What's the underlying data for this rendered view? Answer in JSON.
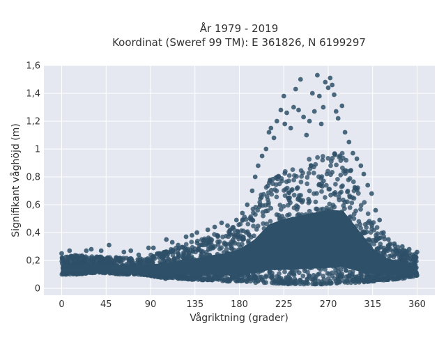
{
  "chart_data": {
    "type": "scatter",
    "title_line1": "År 1979 - 2019",
    "title_line2": "Koordinat (Sweref 99 TM): E 361826, N 6199297",
    "xlabel": "Vågriktning (grader)",
    "ylabel": "Signifikant våghöjd (m)",
    "xlim": [
      -18,
      378
    ],
    "ylim": [
      -0.05,
      1.6
    ],
    "xticks": [
      0,
      45,
      90,
      135,
      180,
      225,
      270,
      315,
      360
    ],
    "xtick_labels": [
      "0",
      "45",
      "90",
      "135",
      "180",
      "225",
      "270",
      "315",
      "360"
    ],
    "yticks": [
      0,
      0.2,
      0.4,
      0.6,
      0.8,
      1.0,
      1.2,
      1.4,
      1.6
    ],
    "ytick_labels": [
      "0",
      "0,2",
      "0,4",
      "0,6",
      "0,8",
      "1",
      "1,2",
      "1,4",
      "1,6"
    ],
    "grid": true,
    "marker_color": "#2e5068",
    "background_color": "#e5e8f0",
    "envelope": {
      "x": [
        0,
        15,
        30,
        45,
        60,
        75,
        90,
        105,
        120,
        135,
        150,
        165,
        180,
        195,
        210,
        225,
        240,
        255,
        270,
        285,
        300,
        315,
        330,
        345,
        360
      ],
      "upper": [
        0.23,
        0.24,
        0.23,
        0.23,
        0.22,
        0.21,
        0.24,
        0.27,
        0.31,
        0.34,
        0.38,
        0.41,
        0.47,
        0.6,
        0.8,
        0.88,
        0.92,
        0.96,
        1.0,
        0.98,
        0.74,
        0.48,
        0.34,
        0.29,
        0.25
      ],
      "lower": [
        0.1,
        0.1,
        0.11,
        0.11,
        0.1,
        0.1,
        0.09,
        0.07,
        0.07,
        0.06,
        0.06,
        0.05,
        0.05,
        0.04,
        0.04,
        0.03,
        0.03,
        0.03,
        0.03,
        0.04,
        0.04,
        0.05,
        0.06,
        0.07,
        0.09
      ]
    },
    "outliers": [
      {
        "x": 0,
        "y": 0.25
      },
      {
        "x": 8,
        "y": 0.27
      },
      {
        "x": 25,
        "y": 0.27
      },
      {
        "x": 30,
        "y": 0.28
      },
      {
        "x": 40,
        "y": 0.27
      },
      {
        "x": 48,
        "y": 0.31
      },
      {
        "x": 63,
        "y": 0.26
      },
      {
        "x": 70,
        "y": 0.27
      },
      {
        "x": 78,
        "y": 0.24
      },
      {
        "x": 88,
        "y": 0.29
      },
      {
        "x": 93,
        "y": 0.29
      },
      {
        "x": 106,
        "y": 0.35
      },
      {
        "x": 112,
        "y": 0.33
      },
      {
        "x": 118,
        "y": 0.31
      },
      {
        "x": 126,
        "y": 0.37
      },
      {
        "x": 132,
        "y": 0.38
      },
      {
        "x": 137,
        "y": 0.4
      },
      {
        "x": 148,
        "y": 0.42
      },
      {
        "x": 155,
        "y": 0.44
      },
      {
        "x": 162,
        "y": 0.47
      },
      {
        "x": 168,
        "y": 0.45
      },
      {
        "x": 177,
        "y": 0.49
      },
      {
        "x": 183,
        "y": 0.54
      },
      {
        "x": 188,
        "y": 0.6
      },
      {
        "x": 193,
        "y": 0.7
      },
      {
        "x": 196,
        "y": 0.8
      },
      {
        "x": 199,
        "y": 0.88
      },
      {
        "x": 203,
        "y": 0.95
      },
      {
        "x": 207,
        "y": 1.0
      },
      {
        "x": 210,
        "y": 1.12
      },
      {
        "x": 212,
        "y": 1.15
      },
      {
        "x": 215,
        "y": 1.08
      },
      {
        "x": 218,
        "y": 1.2
      },
      {
        "x": 222,
        "y": 1.28
      },
      {
        "x": 225,
        "y": 1.38
      },
      {
        "x": 226,
        "y": 1.18
      },
      {
        "x": 228,
        "y": 1.26
      },
      {
        "x": 232,
        "y": 1.15
      },
      {
        "x": 235,
        "y": 1.3
      },
      {
        "x": 237,
        "y": 1.43
      },
      {
        "x": 240,
        "y": 1.28
      },
      {
        "x": 242,
        "y": 1.5
      },
      {
        "x": 245,
        "y": 1.23
      },
      {
        "x": 248,
        "y": 1.1
      },
      {
        "x": 251,
        "y": 1.2
      },
      {
        "x": 254,
        "y": 1.4
      },
      {
        "x": 256,
        "y": 1.27
      },
      {
        "x": 259,
        "y": 1.53
      },
      {
        "x": 261,
        "y": 1.38
      },
      {
        "x": 263,
        "y": 1.18
      },
      {
        "x": 265,
        "y": 1.3
      },
      {
        "x": 267,
        "y": 1.48
      },
      {
        "x": 270,
        "y": 1.44
      },
      {
        "x": 272,
        "y": 1.51
      },
      {
        "x": 274,
        "y": 1.46
      },
      {
        "x": 276,
        "y": 1.39
      },
      {
        "x": 278,
        "y": 1.27
      },
      {
        "x": 280,
        "y": 1.22
      },
      {
        "x": 284,
        "y": 1.31
      },
      {
        "x": 287,
        "y": 1.12
      },
      {
        "x": 291,
        "y": 1.05
      },
      {
        "x": 295,
        "y": 0.97
      },
      {
        "x": 299,
        "y": 0.93
      },
      {
        "x": 303,
        "y": 0.88
      },
      {
        "x": 306,
        "y": 0.82
      },
      {
        "x": 310,
        "y": 0.74
      },
      {
        "x": 314,
        "y": 0.68
      },
      {
        "x": 318,
        "y": 0.56
      },
      {
        "x": 322,
        "y": 0.49
      },
      {
        "x": 326,
        "y": 0.4
      },
      {
        "x": 331,
        "y": 0.35
      },
      {
        "x": 337,
        "y": 0.32
      },
      {
        "x": 345,
        "y": 0.3
      },
      {
        "x": 352,
        "y": 0.28
      },
      {
        "x": 360,
        "y": 0.26
      }
    ]
  }
}
